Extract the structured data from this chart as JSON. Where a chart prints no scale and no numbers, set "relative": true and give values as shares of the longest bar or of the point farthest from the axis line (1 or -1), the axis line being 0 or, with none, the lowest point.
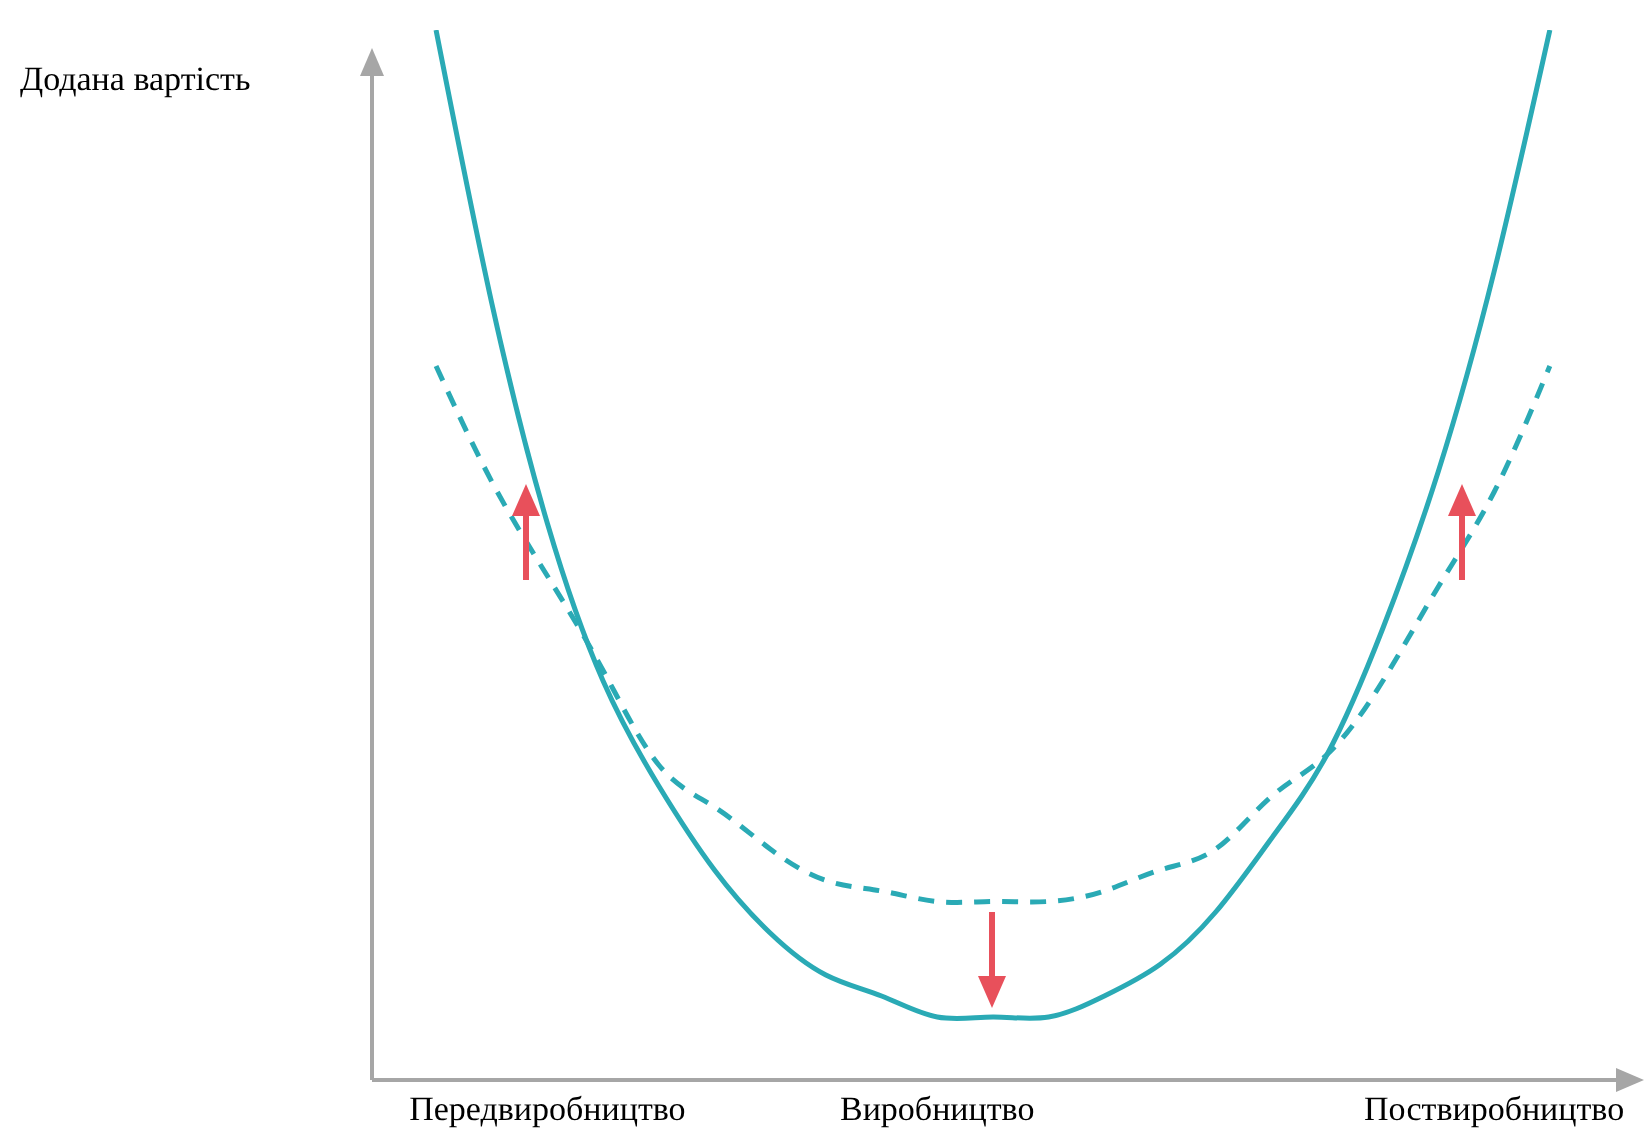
{
  "chart_data": {
    "type": "line",
    "ylabel": "Додана вартість",
    "relative": true,
    "legend": false,
    "grid": false,
    "marker": "none",
    "categories": [
      null,
      null,
      "Передвиробництво",
      null,
      null,
      null,
      null,
      null,
      null,
      "Виробництво",
      null,
      null,
      null,
      null,
      null,
      null,
      null,
      null,
      null,
      "Поствиробництво",
      null
    ],
    "series": [
      {
        "color": "#2aaab5",
        "line_style": "solid",
        "values": [
          1,
          0.74,
          0.53,
          0.38,
          0.28,
          0.2,
          0.14,
          0.1,
          0.08,
          0.06,
          0.06,
          0.06,
          0.08,
          0.11,
          0.16,
          0.23,
          0.31,
          0.43,
          0.58,
          0.77,
          1
        ]
      },
      {
        "color": "#2aaab5",
        "line_style": "dashed",
        "values": [
          0.68,
          0.57,
          0.48,
          0.39,
          0.3,
          0.26,
          0.22,
          0.19,
          0.18,
          0.17,
          0.17,
          0.17,
          0.18,
          0.2,
          0.22,
          0.27,
          0.31,
          0.38,
          0.47,
          0.56,
          0.68
        ]
      }
    ]
  }
}
